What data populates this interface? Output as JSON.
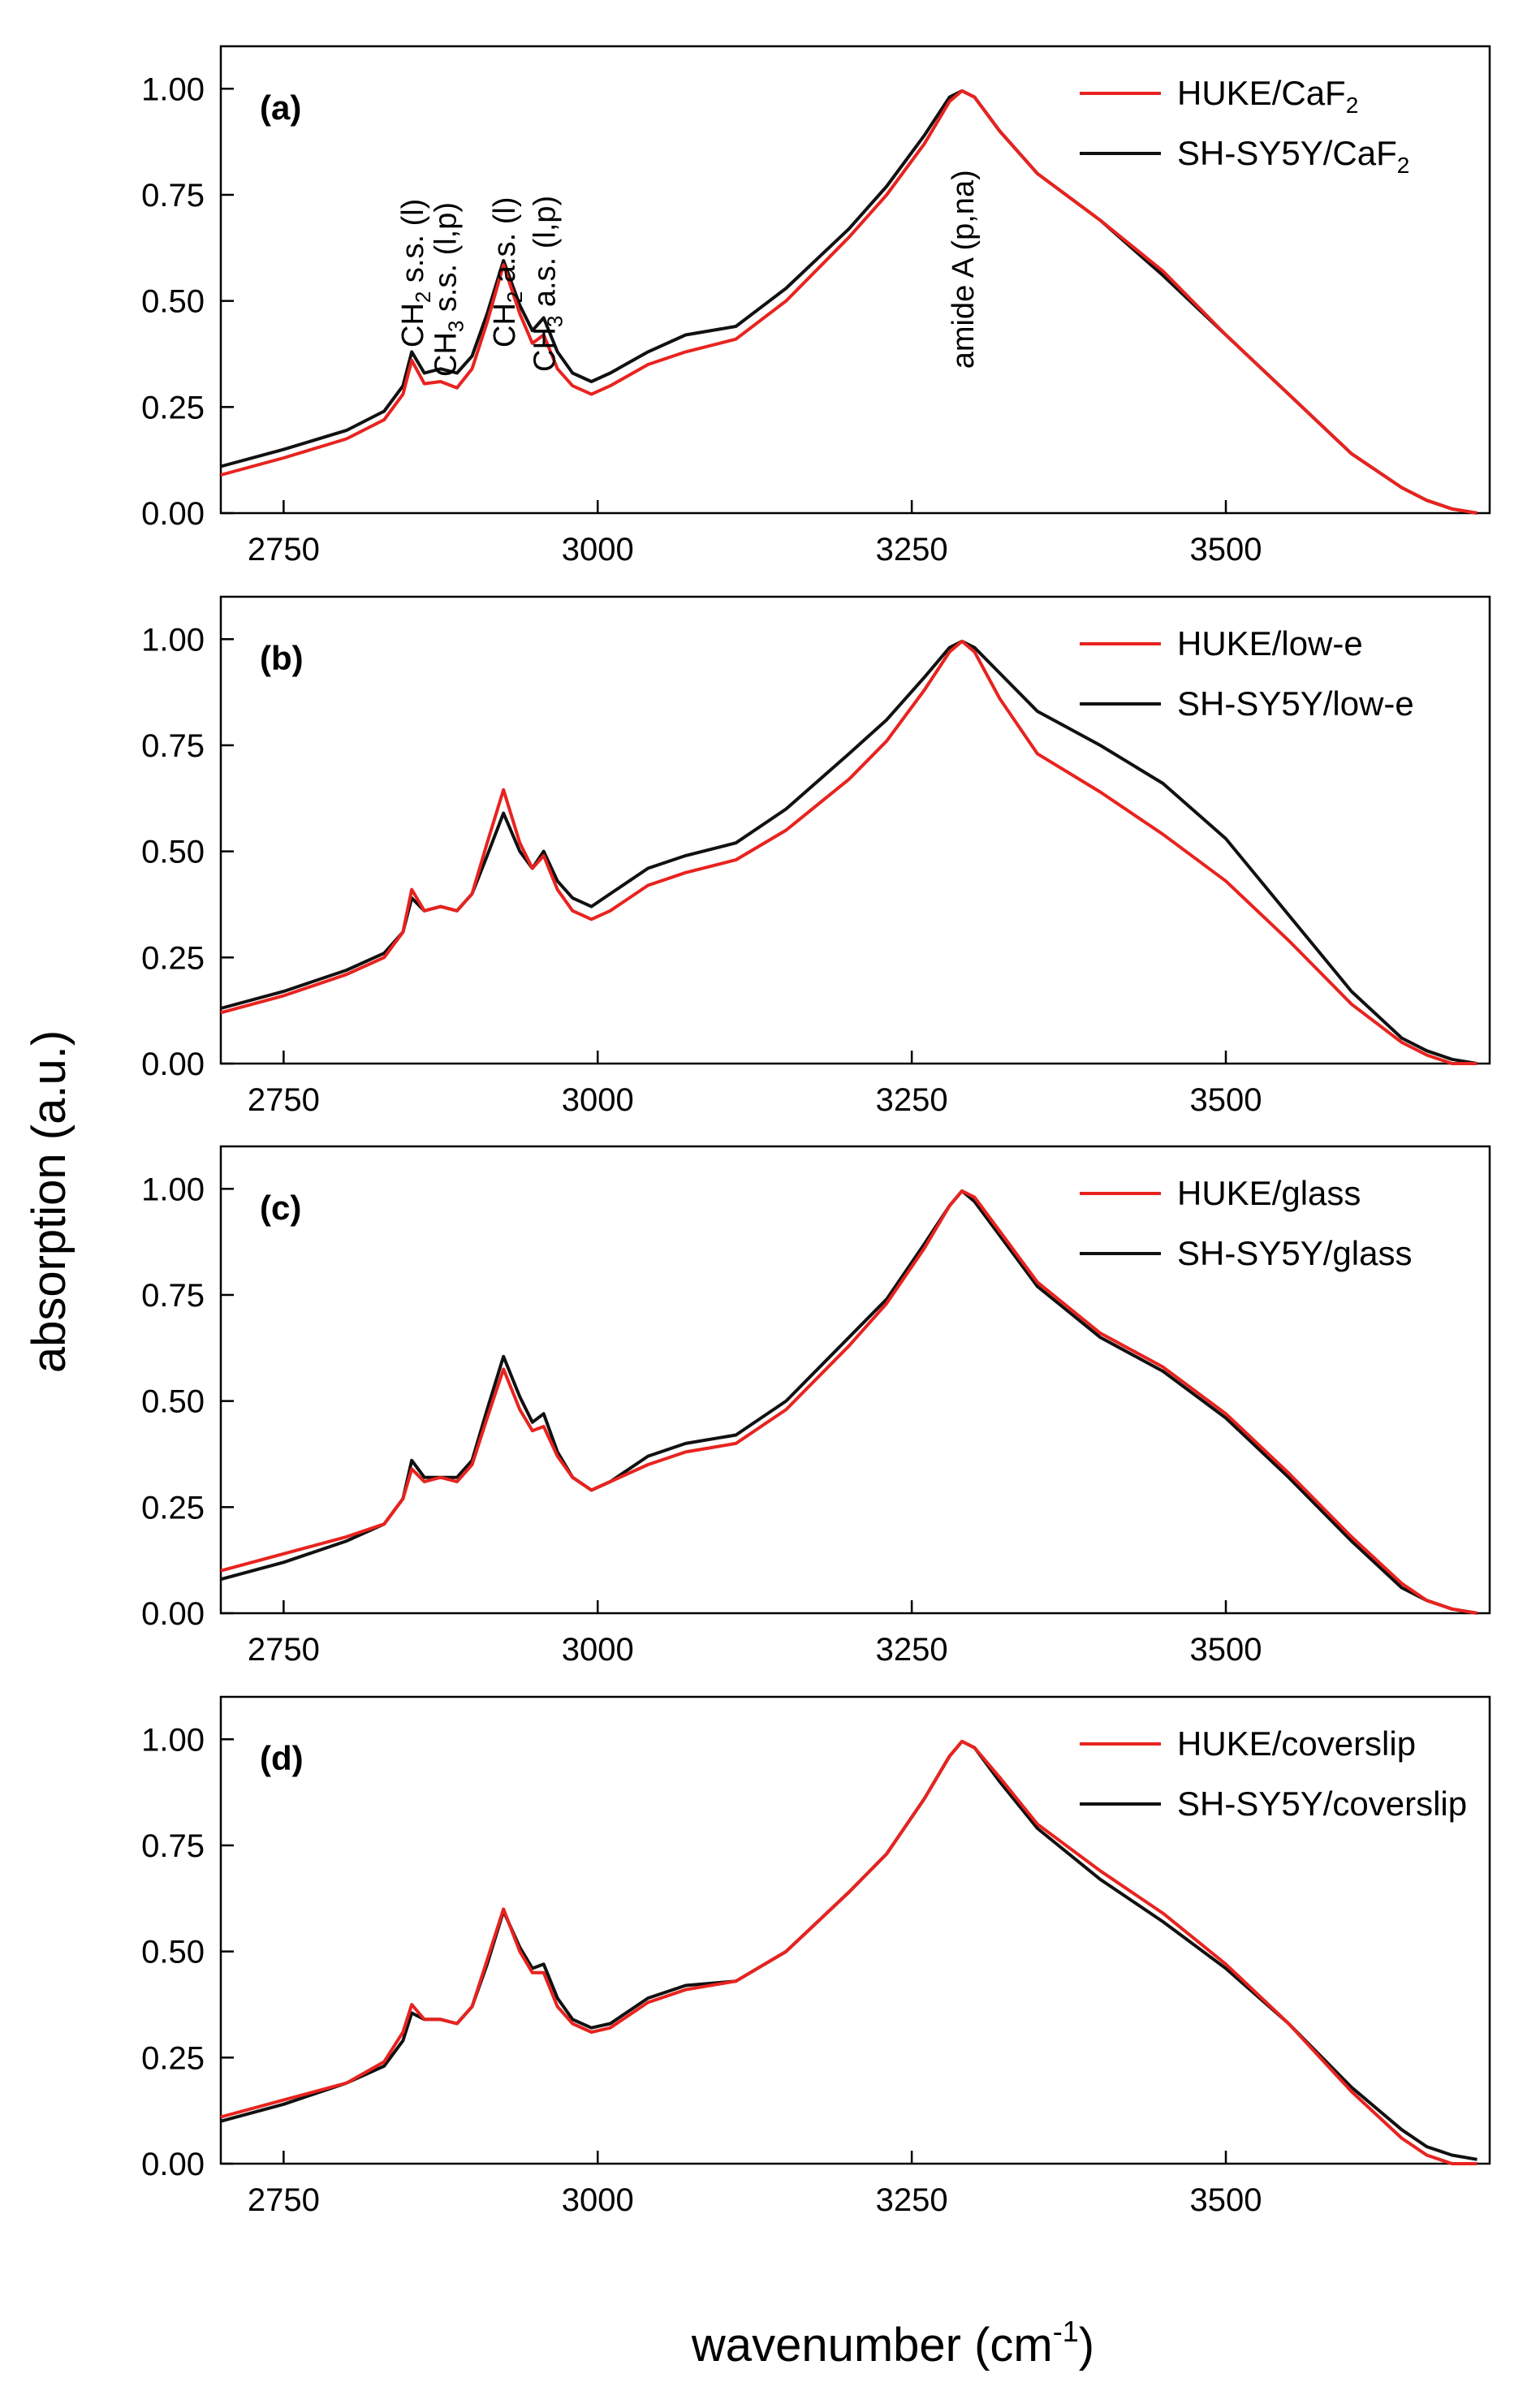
{
  "figure": {
    "ylabel": "absorption (a.u.)",
    "xlabel_base": "wavenumber (cm",
    "xlabel_sup": "-1",
    "xlabel_close": ")"
  },
  "colors": {
    "huke": "#e8231f",
    "shsy5y": "#111111"
  },
  "chart_data": [
    {
      "type": "line",
      "panel": "(a)",
      "xlim": [
        2700,
        3710
      ],
      "ylim": [
        0,
        1.1
      ],
      "xticks": [
        "2750",
        "3000",
        "3250",
        "3500"
      ],
      "yticks": [
        "0.00",
        "0.25",
        "0.50",
        "0.75",
        "1.00"
      ],
      "legend_position": "top-right",
      "annotations": [
        {
          "text": "CH2 s.s. (l)",
          "main": "CH",
          "sub": "2",
          "rest": " s.s. (l)",
          "x": 2852
        },
        {
          "text": "CH3 s.s. (l,p)",
          "main": "CH",
          "sub": "3",
          "rest": " s.s. (l,p)",
          "x": 2878
        },
        {
          "text": "CH2 a.s. (l)",
          "main": "CH",
          "sub": "2",
          "rest": " a.s. (l)",
          "x": 2925
        },
        {
          "text": "CH3 a.s. (l,p)",
          "main": "CH",
          "sub": "3",
          "rest": " a.s. (l,p)",
          "x": 2957
        },
        {
          "text": "amide A (p,na)",
          "main": "amide A (p,na)",
          "sub": "",
          "rest": "",
          "x": 3290
        }
      ],
      "series": [
        {
          "name": "HUKE/CaF2",
          "label_main": "HUKE/CaF",
          "label_sub": "2",
          "color": "#e8231f",
          "x": [
            2700,
            2750,
            2800,
            2830,
            2845,
            2852,
            2862,
            2875,
            2888,
            2900,
            2912,
            2925,
            2938,
            2948,
            2957,
            2968,
            2980,
            2995,
            3010,
            3040,
            3070,
            3110,
            3150,
            3200,
            3230,
            3260,
            3280,
            3290,
            3300,
            3320,
            3350,
            3400,
            3450,
            3500,
            3550,
            3600,
            3640,
            3660,
            3680,
            3700
          ],
          "y": [
            0.09,
            0.13,
            0.175,
            0.22,
            0.28,
            0.36,
            0.305,
            0.31,
            0.295,
            0.34,
            0.45,
            0.585,
            0.47,
            0.4,
            0.42,
            0.34,
            0.3,
            0.28,
            0.3,
            0.35,
            0.38,
            0.41,
            0.5,
            0.65,
            0.75,
            0.87,
            0.97,
            0.995,
            0.98,
            0.9,
            0.8,
            0.69,
            0.57,
            0.42,
            0.28,
            0.14,
            0.06,
            0.03,
            0.01,
            0.0
          ]
        },
        {
          "name": "SH-SY5Y/CaF2",
          "label_main": "SH-SY5Y/CaF",
          "label_sub": "2",
          "color": "#111111",
          "x": [
            2700,
            2750,
            2800,
            2830,
            2845,
            2852,
            2862,
            2875,
            2888,
            2900,
            2912,
            2925,
            2938,
            2948,
            2957,
            2968,
            2980,
            2995,
            3010,
            3040,
            3070,
            3110,
            3150,
            3200,
            3230,
            3260,
            3280,
            3290,
            3300,
            3320,
            3350,
            3400,
            3450,
            3500,
            3550,
            3600,
            3640,
            3660,
            3680,
            3700
          ],
          "y": [
            0.11,
            0.15,
            0.195,
            0.24,
            0.3,
            0.38,
            0.33,
            0.34,
            0.33,
            0.37,
            0.47,
            0.595,
            0.49,
            0.43,
            0.46,
            0.38,
            0.33,
            0.31,
            0.33,
            0.38,
            0.42,
            0.44,
            0.53,
            0.67,
            0.77,
            0.89,
            0.98,
            0.995,
            0.98,
            0.9,
            0.8,
            0.69,
            0.56,
            0.42,
            0.28,
            0.14,
            0.06,
            0.03,
            0.01,
            0.0
          ]
        }
      ]
    },
    {
      "type": "line",
      "panel": "(b)",
      "xlim": [
        2700,
        3710
      ],
      "ylim": [
        0,
        1.1
      ],
      "xticks": [
        "2750",
        "3000",
        "3250",
        "3500"
      ],
      "yticks": [
        "0.00",
        "0.25",
        "0.50",
        "0.75",
        "1.00"
      ],
      "legend_position": "top-right",
      "annotations": [],
      "series": [
        {
          "name": "HUKE/low-e",
          "label_main": "HUKE/low-e",
          "label_sub": "",
          "color": "#e8231f",
          "x": [
            2700,
            2750,
            2800,
            2830,
            2845,
            2852,
            2862,
            2875,
            2888,
            2900,
            2912,
            2925,
            2938,
            2948,
            2957,
            2968,
            2980,
            2995,
            3010,
            3040,
            3070,
            3110,
            3150,
            3200,
            3230,
            3260,
            3280,
            3290,
            3300,
            3320,
            3350,
            3400,
            3450,
            3500,
            3550,
            3600,
            3640,
            3660,
            3680,
            3700
          ],
          "y": [
            0.12,
            0.16,
            0.21,
            0.25,
            0.31,
            0.41,
            0.36,
            0.37,
            0.36,
            0.4,
            0.52,
            0.645,
            0.52,
            0.46,
            0.49,
            0.41,
            0.36,
            0.34,
            0.36,
            0.42,
            0.45,
            0.48,
            0.55,
            0.67,
            0.76,
            0.88,
            0.97,
            0.995,
            0.97,
            0.86,
            0.73,
            0.64,
            0.54,
            0.43,
            0.29,
            0.14,
            0.05,
            0.02,
            0.0,
            0.0
          ]
        },
        {
          "name": "SH-SY5Y/low-e",
          "label_main": "SH-SY5Y/low-e",
          "label_sub": "",
          "color": "#111111",
          "x": [
            2700,
            2750,
            2800,
            2830,
            2845,
            2852,
            2862,
            2875,
            2888,
            2900,
            2912,
            2925,
            2938,
            2948,
            2957,
            2968,
            2980,
            2995,
            3010,
            3040,
            3070,
            3110,
            3150,
            3200,
            3230,
            3260,
            3280,
            3290,
            3300,
            3320,
            3350,
            3400,
            3450,
            3500,
            3550,
            3600,
            3640,
            3660,
            3680,
            3700
          ],
          "y": [
            0.13,
            0.17,
            0.22,
            0.26,
            0.31,
            0.39,
            0.36,
            0.37,
            0.36,
            0.4,
            0.49,
            0.59,
            0.5,
            0.46,
            0.5,
            0.43,
            0.39,
            0.37,
            0.4,
            0.46,
            0.49,
            0.52,
            0.6,
            0.73,
            0.81,
            0.91,
            0.98,
            0.995,
            0.98,
            0.92,
            0.83,
            0.75,
            0.66,
            0.53,
            0.35,
            0.17,
            0.06,
            0.03,
            0.01,
            0.0
          ]
        }
      ]
    },
    {
      "type": "line",
      "panel": "(c)",
      "xlim": [
        2700,
        3710
      ],
      "ylim": [
        0,
        1.1
      ],
      "xticks": [
        "2750",
        "3000",
        "3250",
        "3500"
      ],
      "yticks": [
        "0.00",
        "0.25",
        "0.50",
        "0.75",
        "1.00"
      ],
      "legend_position": "top-right",
      "annotations": [],
      "series": [
        {
          "name": "HUKE/glass",
          "label_main": "HUKE/glass",
          "label_sub": "",
          "color": "#e8231f",
          "x": [
            2700,
            2750,
            2800,
            2830,
            2845,
            2852,
            2862,
            2875,
            2888,
            2900,
            2912,
            2925,
            2938,
            2948,
            2957,
            2968,
            2980,
            2995,
            3010,
            3040,
            3070,
            3110,
            3150,
            3200,
            3230,
            3260,
            3280,
            3290,
            3300,
            3320,
            3350,
            3400,
            3450,
            3500,
            3550,
            3600,
            3640,
            3660,
            3680,
            3700
          ],
          "y": [
            0.1,
            0.14,
            0.18,
            0.21,
            0.27,
            0.34,
            0.31,
            0.32,
            0.31,
            0.35,
            0.46,
            0.575,
            0.48,
            0.43,
            0.44,
            0.37,
            0.32,
            0.29,
            0.31,
            0.35,
            0.38,
            0.4,
            0.48,
            0.63,
            0.73,
            0.86,
            0.96,
            0.995,
            0.98,
            0.9,
            0.78,
            0.66,
            0.58,
            0.47,
            0.33,
            0.18,
            0.07,
            0.03,
            0.01,
            0.0
          ]
        },
        {
          "name": "SH-SY5Y/glass",
          "label_main": "SH-SY5Y/glass",
          "label_sub": "",
          "color": "#111111",
          "x": [
            2700,
            2750,
            2800,
            2830,
            2845,
            2852,
            2862,
            2875,
            2888,
            2900,
            2912,
            2925,
            2938,
            2948,
            2957,
            2968,
            2980,
            2995,
            3010,
            3040,
            3070,
            3110,
            3150,
            3200,
            3230,
            3260,
            3280,
            3290,
            3300,
            3320,
            3350,
            3400,
            3450,
            3500,
            3550,
            3600,
            3640,
            3660,
            3680,
            3700
          ],
          "y": [
            0.08,
            0.12,
            0.17,
            0.21,
            0.27,
            0.36,
            0.32,
            0.32,
            0.32,
            0.36,
            0.48,
            0.605,
            0.51,
            0.45,
            0.47,
            0.38,
            0.32,
            0.29,
            0.31,
            0.37,
            0.4,
            0.42,
            0.5,
            0.65,
            0.74,
            0.87,
            0.96,
            0.995,
            0.97,
            0.89,
            0.77,
            0.65,
            0.57,
            0.46,
            0.32,
            0.17,
            0.06,
            0.03,
            0.01,
            0.0
          ]
        }
      ]
    },
    {
      "type": "line",
      "panel": "(d)",
      "xlim": [
        2700,
        3710
      ],
      "ylim": [
        0,
        1.1
      ],
      "xticks": [
        "2750",
        "3000",
        "3250",
        "3500"
      ],
      "yticks": [
        "0.00",
        "0.25",
        "0.50",
        "0.75",
        "1.00"
      ],
      "legend_position": "top-right",
      "annotations": [],
      "series": [
        {
          "name": "HUKE/coverslip",
          "label_main": "HUKE/coverslip",
          "label_sub": "",
          "color": "#e8231f",
          "x": [
            2700,
            2750,
            2800,
            2830,
            2845,
            2852,
            2862,
            2875,
            2888,
            2900,
            2912,
            2925,
            2938,
            2948,
            2957,
            2968,
            2980,
            2995,
            3010,
            3040,
            3070,
            3110,
            3150,
            3200,
            3230,
            3260,
            3280,
            3290,
            3300,
            3320,
            3350,
            3400,
            3450,
            3500,
            3550,
            3600,
            3640,
            3660,
            3680,
            3700
          ],
          "y": [
            0.11,
            0.15,
            0.19,
            0.24,
            0.31,
            0.375,
            0.34,
            0.34,
            0.33,
            0.37,
            0.48,
            0.6,
            0.5,
            0.45,
            0.45,
            0.37,
            0.33,
            0.31,
            0.32,
            0.38,
            0.41,
            0.43,
            0.5,
            0.64,
            0.73,
            0.86,
            0.96,
            0.995,
            0.98,
            0.91,
            0.8,
            0.69,
            0.59,
            0.47,
            0.33,
            0.17,
            0.06,
            0.02,
            0.0,
            0.0
          ]
        },
        {
          "name": "SH-SY5Y/coverslip",
          "label_main": "SH-SY5Y/coverslip",
          "label_sub": "",
          "color": "#111111",
          "x": [
            2700,
            2750,
            2800,
            2830,
            2845,
            2852,
            2862,
            2875,
            2888,
            2900,
            2912,
            2925,
            2938,
            2948,
            2957,
            2968,
            2980,
            2995,
            3010,
            3040,
            3070,
            3110,
            3150,
            3200,
            3230,
            3260,
            3280,
            3290,
            3300,
            3320,
            3350,
            3400,
            3450,
            3500,
            3550,
            3600,
            3640,
            3660,
            3680,
            3700
          ],
          "y": [
            0.1,
            0.14,
            0.19,
            0.23,
            0.29,
            0.355,
            0.34,
            0.34,
            0.33,
            0.37,
            0.47,
            0.595,
            0.51,
            0.46,
            0.47,
            0.39,
            0.34,
            0.32,
            0.33,
            0.39,
            0.42,
            0.43,
            0.5,
            0.64,
            0.73,
            0.86,
            0.96,
            0.995,
            0.98,
            0.9,
            0.79,
            0.67,
            0.57,
            0.46,
            0.33,
            0.18,
            0.08,
            0.04,
            0.02,
            0.01
          ]
        }
      ]
    }
  ]
}
